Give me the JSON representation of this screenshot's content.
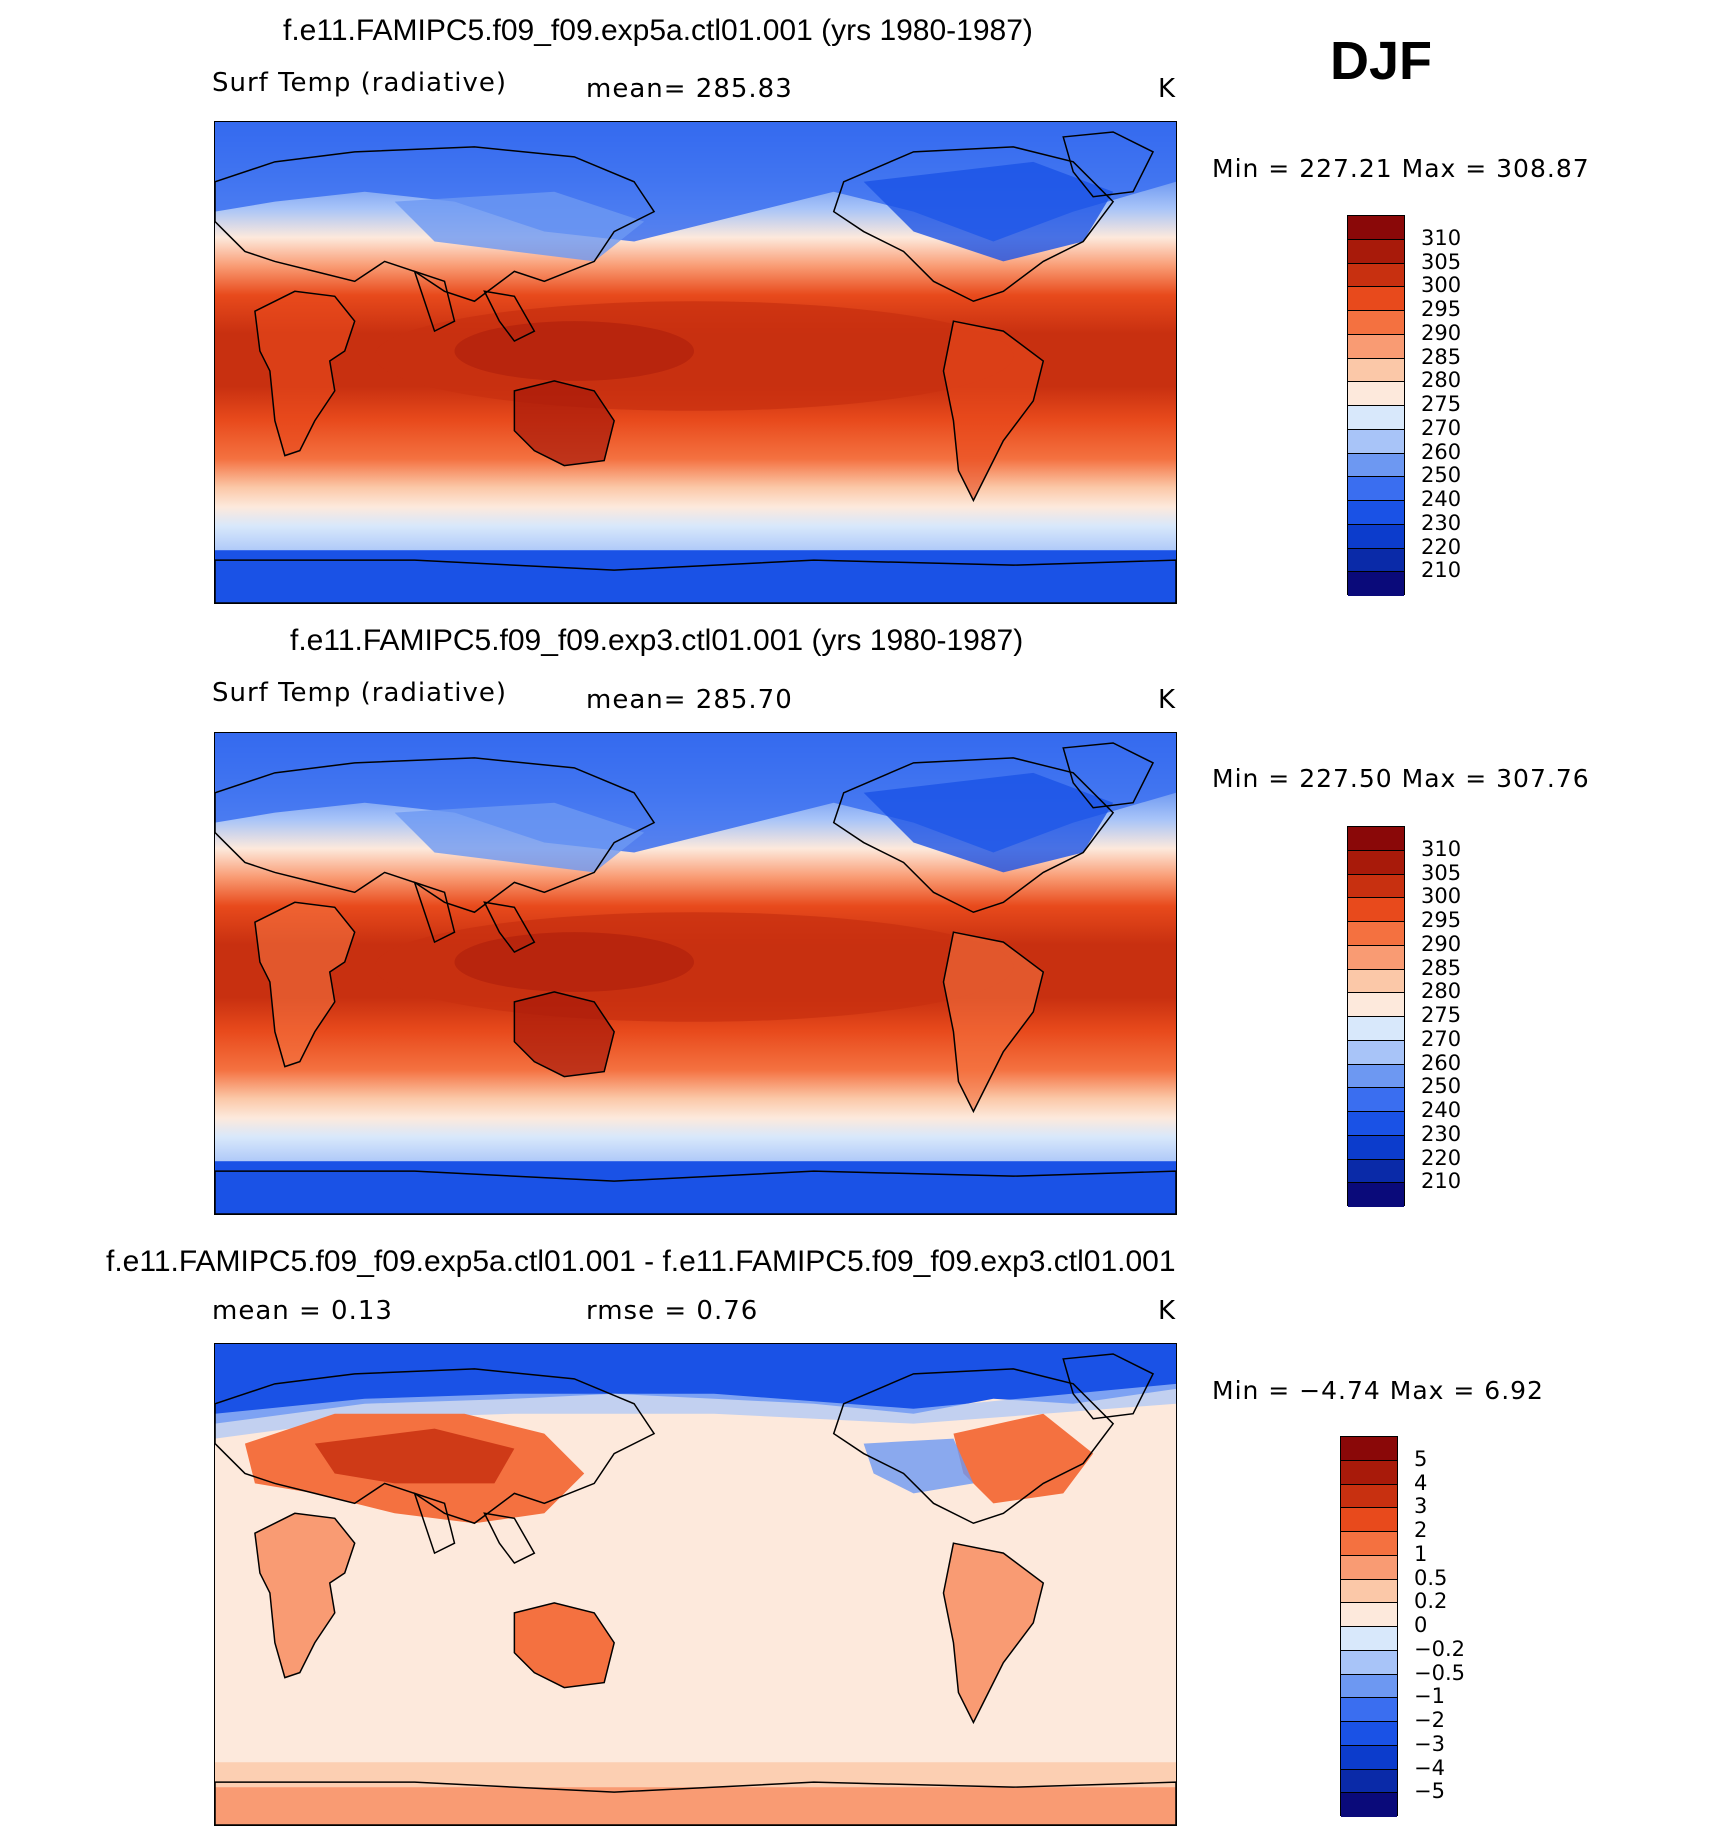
{
  "season": "DJF",
  "panels": [
    {
      "title": "f.e11.FAMIPC5.f09_f09.exp5a.ctl01.001 (yrs 1980-1987)",
      "variable": "Surf Temp (radiative)",
      "stat": "mean=  285.83",
      "units": "K",
      "minmax": "Min  =  227.21  Max  =  308.87"
    },
    {
      "title": "f.e11.FAMIPC5.f09_f09.exp3.ctl01.001 (yrs 1980-1987)",
      "variable": "Surf Temp (radiative)",
      "stat": "mean=  285.70",
      "units": "K",
      "minmax": "Min  =  227.50  Max  =  307.76"
    },
    {
      "title": "f.e11.FAMIPC5.f09_f09.exp5a.ctl01.001 - f.e11.FAMIPC5.f09_f09.exp3.ctl01.001",
      "variable": "mean =     0.13",
      "stat": "rmse =     0.76",
      "units": "K",
      "minmax": "Min  =    −4.74  Max  =      6.92"
    }
  ],
  "chart_data": [
    {
      "type": "heatmap",
      "title": "f.e11.FAMIPC5.f09_f09.exp5a.ctl01.001 (yrs 1980-1987)",
      "variable": "Surf Temp (radiative)",
      "units": "K",
      "mean": 285.83,
      "min": 227.21,
      "max": 308.87,
      "levels": [
        210,
        220,
        230,
        240,
        250,
        260,
        270,
        275,
        280,
        285,
        290,
        295,
        300,
        305,
        310
      ],
      "colors": [
        "#0a0a7a",
        "#0a2aa8",
        "#0c3ccc",
        "#1a52e6",
        "#3a6ef0",
        "#6d98f2",
        "#a8c4f8",
        "#d8e8fb",
        "#fde9dc",
        "#fbc8a8",
        "#f99b73",
        "#f47140",
        "#e84a1c",
        "#c83010",
        "#a81a0a",
        "#8a0808"
      ]
    },
    {
      "type": "heatmap",
      "title": "f.e11.FAMIPC5.f09_f09.exp3.ctl01.001 (yrs 1980-1987)",
      "variable": "Surf Temp (radiative)",
      "units": "K",
      "mean": 285.7,
      "min": 227.5,
      "max": 307.76,
      "levels": [
        210,
        220,
        230,
        240,
        250,
        260,
        270,
        275,
        280,
        285,
        290,
        295,
        300,
        305,
        310
      ],
      "colors": [
        "#0a0a7a",
        "#0a2aa8",
        "#0c3ccc",
        "#1a52e6",
        "#3a6ef0",
        "#6d98f2",
        "#a8c4f8",
        "#d8e8fb",
        "#fde9dc",
        "#fbc8a8",
        "#f99b73",
        "#f47140",
        "#e84a1c",
        "#c83010",
        "#a81a0a",
        "#8a0808"
      ]
    },
    {
      "type": "heatmap",
      "title": "f.e11.FAMIPC5.f09_f09.exp5a.ctl01.001 - f.e11.FAMIPC5.f09_f09.exp3.ctl01.001",
      "units": "K",
      "mean": 0.13,
      "rmse": 0.76,
      "min": -4.74,
      "max": 6.92,
      "levels": [
        -5,
        -4,
        -3,
        -2,
        -1,
        -0.5,
        -0.2,
        0,
        0.2,
        0.5,
        1,
        2,
        3,
        4,
        5
      ],
      "level_labels": [
        "−5",
        "−4",
        "−3",
        "−2",
        "−1",
        "−0.5",
        "−0.2",
        "0",
        "0.2",
        "0.5",
        "1",
        "2",
        "3",
        "4",
        "5"
      ],
      "colors": [
        "#0a0a7a",
        "#0a2aa8",
        "#0c3ccc",
        "#1a52e6",
        "#3a6ef0",
        "#6d98f2",
        "#a8c4f8",
        "#d8e8fb",
        "#fde9dc",
        "#fbc8a8",
        "#f99b73",
        "#f47140",
        "#e84a1c",
        "#c83010",
        "#a81a0a",
        "#8a0808"
      ]
    }
  ]
}
